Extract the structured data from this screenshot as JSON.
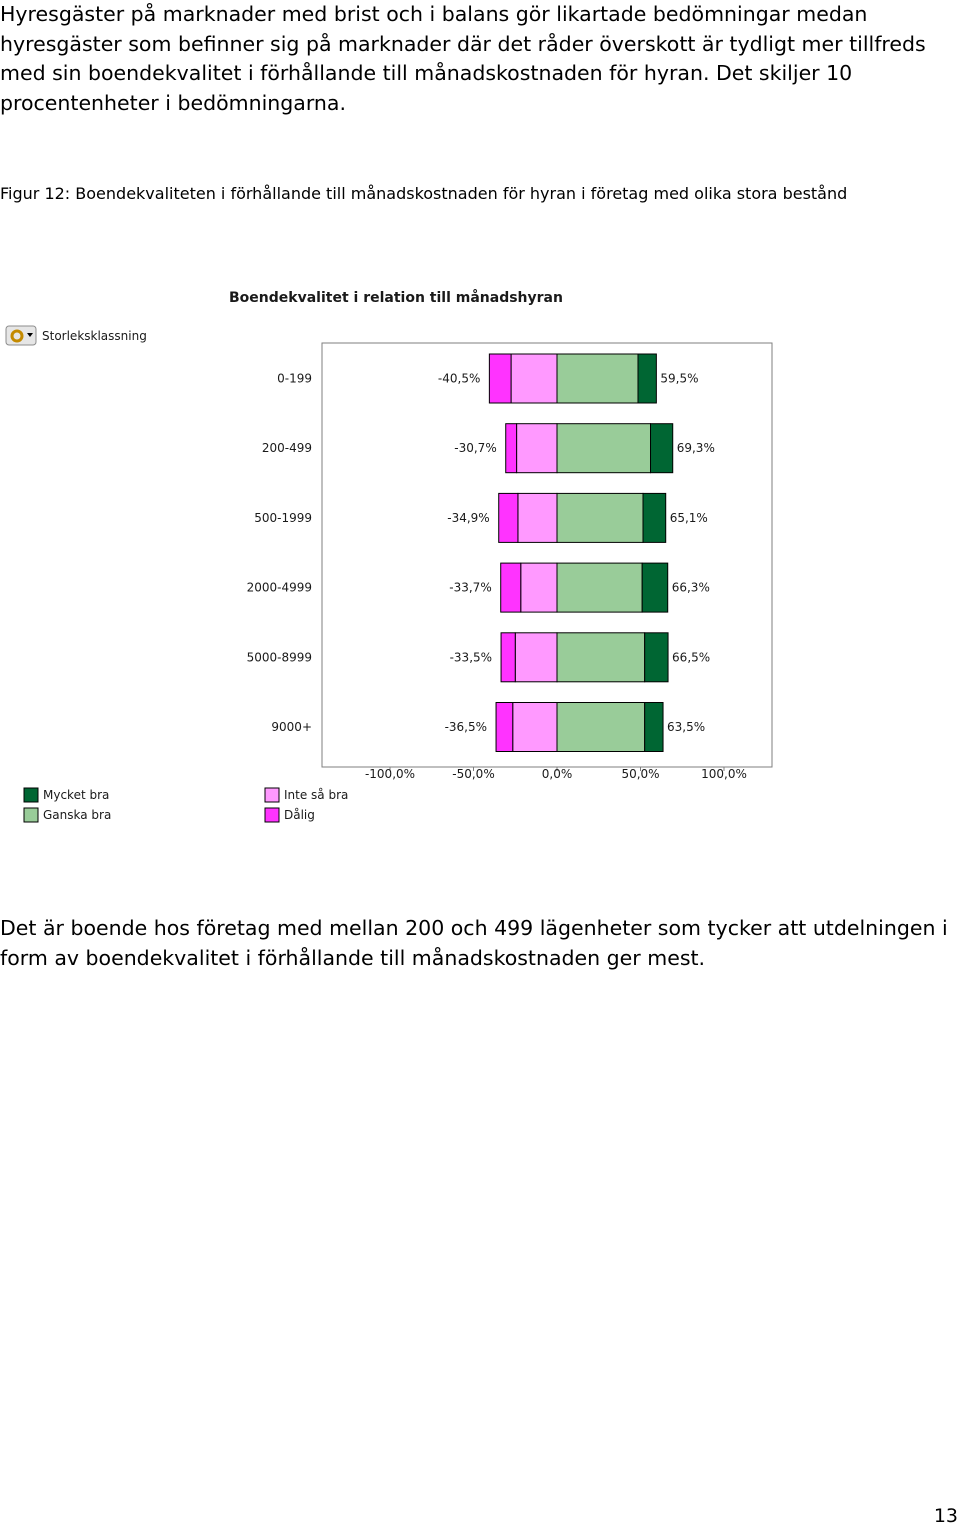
{
  "text": {
    "intro": "Hyresgäster på marknader med brist och i balans gör likartade bedömningar medan hyresgäster som befinner sig på marknader där det råder överskott är tydligt mer tillfreds med sin boendekvalitet i förhållande till månadskostnaden för hyran. Det skiljer 10 procentenheter i bedömningarna.",
    "caption": "Figur 12: Boendekvaliteten i förhållande till månadskostnaden för hyran i företag med olika stora bestånd",
    "conclusion": "Det är boende hos företag med mellan 200 och 499 lägenheter som tycker att utdelningen i form av boendekvalitet i förhållande till månadskostnaden ger mest.",
    "page_number": "13"
  },
  "chart_data": {
    "type": "bar",
    "orientation": "horizontal-diverging-stacked",
    "title": "Boendekvalitet i relation till månadshyran",
    "filter_label": "Storleksklassning",
    "categories": [
      "0-199",
      "200-499",
      "500-1999",
      "2000-4999",
      "5000-8999",
      "9000+"
    ],
    "series": [
      {
        "name": "Dålig",
        "color": "#ff33ff",
        "values": [
          -13.0,
          -6.5,
          -11.5,
          -12.0,
          -8.5,
          -10.0
        ]
      },
      {
        "name": "Inte så bra",
        "color": "#ff99ff",
        "values": [
          -27.5,
          -24.2,
          -23.4,
          -21.7,
          -25.0,
          -26.5
        ]
      },
      {
        "name": "Ganska bra",
        "color": "#99cc99",
        "values": [
          48.5,
          56.0,
          51.5,
          51.0,
          52.5,
          52.5
        ]
      },
      {
        "name": "Mycket bra",
        "color": "#006633",
        "values": [
          11.0,
          13.3,
          13.6,
          15.3,
          14.0,
          11.0
        ]
      }
    ],
    "negative_totals": [
      "-40,5%",
      "-30,7%",
      "-34,9%",
      "-33,7%",
      "-33,5%",
      "-36,5%"
    ],
    "positive_totals": [
      "59,5%",
      "69,3%",
      "65,1%",
      "66,3%",
      "66,5%",
      "63,5%"
    ],
    "xlim": [
      -100,
      100
    ],
    "xticks": [
      -100,
      -50,
      0,
      50,
      100
    ],
    "xtick_labels": [
      "-100,0%",
      "-50,0%",
      "0,0%",
      "50,0%",
      "100,0%"
    ],
    "legend": {
      "left": [
        "Mycket bra",
        "Ganska bra"
      ],
      "right": [
        "Inte så bra",
        "Dålig"
      ]
    },
    "grid": false
  }
}
